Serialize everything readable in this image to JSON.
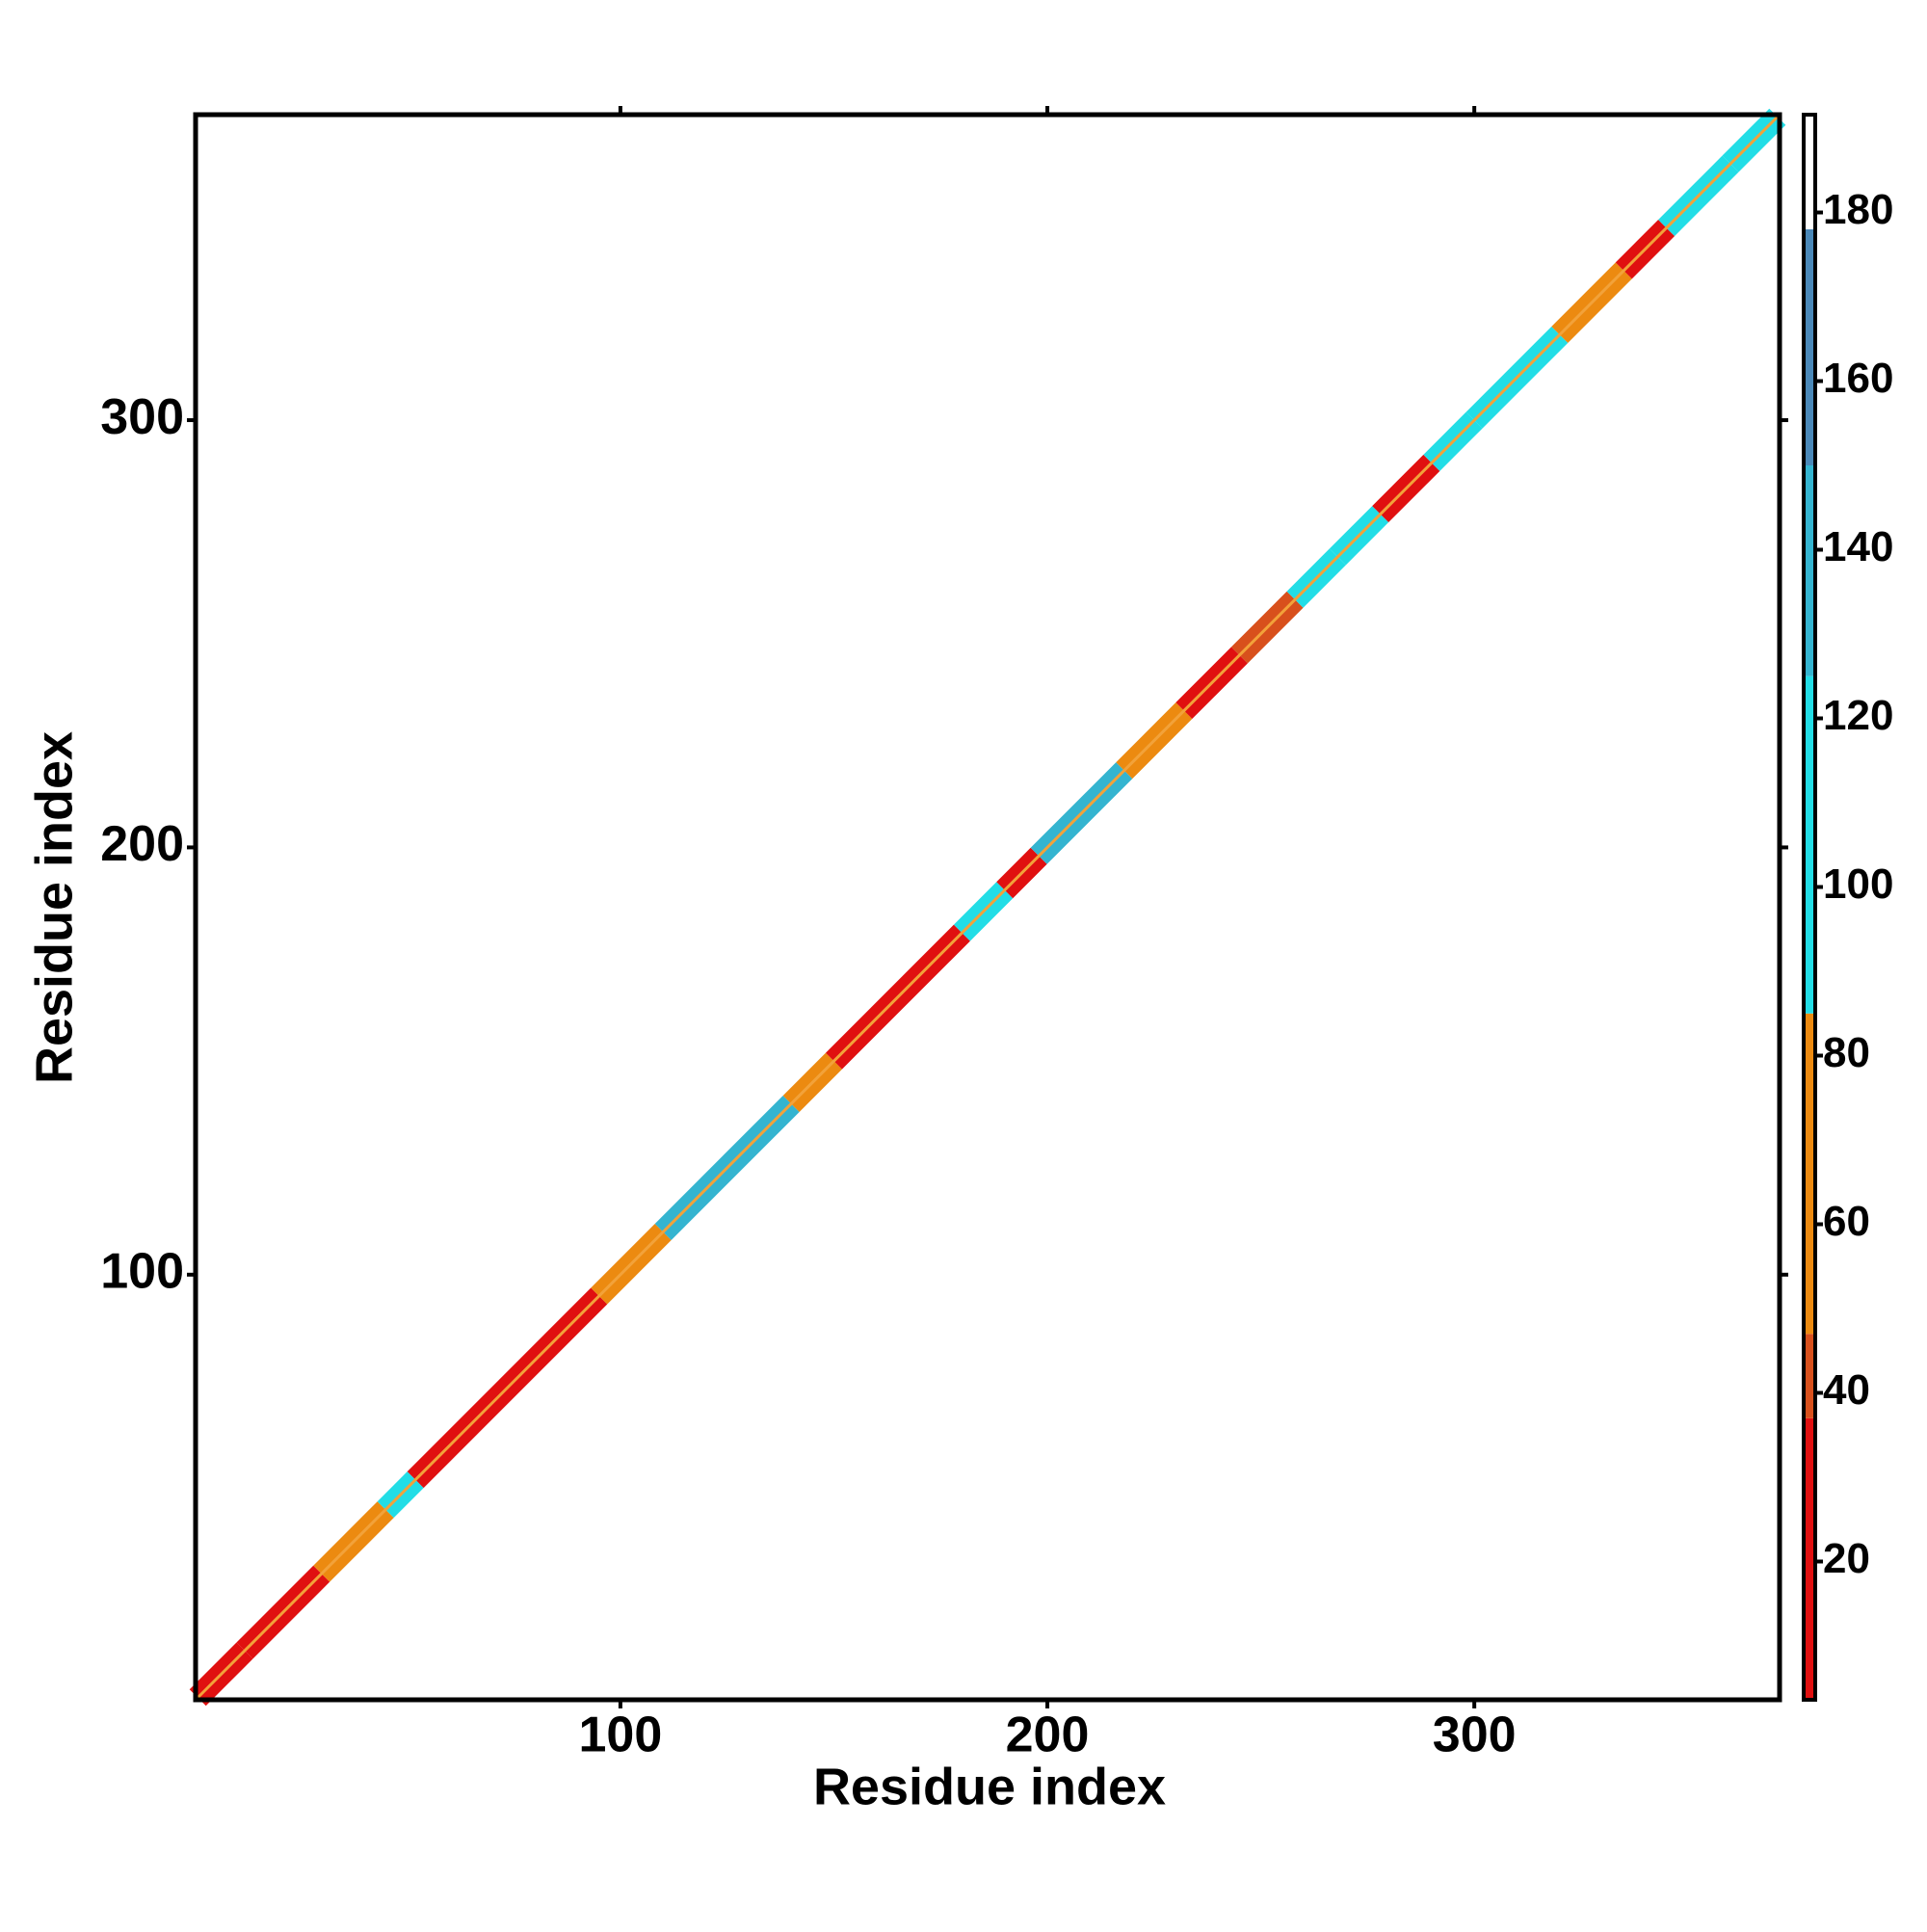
{
  "chart_data": {
    "type": "contact-map",
    "x_label": "Residue index",
    "y_label": "Residue index",
    "xlim": [
      0.5,
      371.5
    ],
    "ylim": [
      0.5,
      371.5
    ],
    "xticks": [
      100,
      200,
      300
    ],
    "yticks": [
      100,
      200,
      300
    ],
    "segments": {
      "start": [
        1,
        12,
        30,
        45,
        52,
        95,
        110,
        140,
        150,
        180,
        190,
        198,
        218,
        232,
        245,
        258,
        268,
        278,
        290,
        300,
        320,
        335,
        345,
        360
      ],
      "end": [
        12,
        30,
        45,
        52,
        95,
        110,
        140,
        150,
        180,
        190,
        198,
        218,
        232,
        245,
        258,
        268,
        278,
        290,
        300,
        320,
        335,
        345,
        360,
        371
      ],
      "values": [
        15,
        25,
        70,
        100,
        20,
        60,
        130,
        70,
        20,
        100,
        20,
        140,
        70,
        20,
        40,
        100,
        110,
        25,
        110,
        120,
        60,
        20,
        120,
        100
      ]
    },
    "colorbar": {
      "lim": [
        3.6,
        191.6
      ],
      "ticks": [
        20,
        40,
        60,
        80,
        100,
        120,
        140,
        160,
        180
      ],
      "stops": [
        {
          "value": 3.6,
          "color": "#e01010"
        },
        {
          "value": 37,
          "color": "#d8501c"
        },
        {
          "value": 47,
          "color": "#ec8a10"
        },
        {
          "value": 85,
          "color": "#22dde6"
        },
        {
          "value": 125,
          "color": "#34b4d0"
        },
        {
          "value": 150,
          "color": "#4a88b8"
        },
        {
          "value": 178,
          "color": "#ffffff"
        }
      ]
    }
  }
}
